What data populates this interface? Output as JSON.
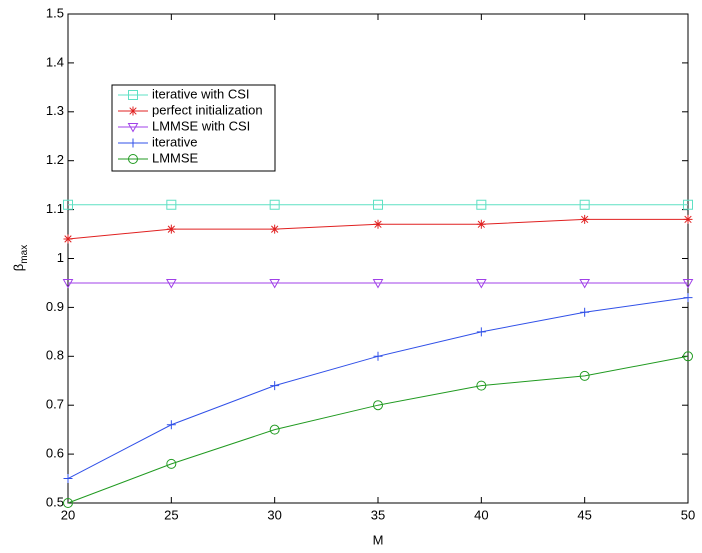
{
  "chart_data": {
    "type": "line",
    "xlabel": "M",
    "ylabel": {
      "text": "β",
      "subscript": "max"
    },
    "x": [
      20,
      25,
      30,
      35,
      40,
      45,
      50
    ],
    "series": [
      {
        "name": "iterative with CSI",
        "color": "#5fe0c4",
        "marker": "square",
        "values": [
          1.11,
          1.11,
          1.11,
          1.11,
          1.11,
          1.11,
          1.11
        ]
      },
      {
        "name": "perfect initialization",
        "color": "#e02020",
        "marker": "star",
        "values": [
          1.04,
          1.06,
          1.06,
          1.07,
          1.07,
          1.08,
          1.08
        ]
      },
      {
        "name": "LMMSE with CSI",
        "color": "#a040e8",
        "marker": "triangle-down",
        "values": [
          0.95,
          0.95,
          0.95,
          0.95,
          0.95,
          0.95,
          0.95
        ]
      },
      {
        "name": "iterative",
        "color": "#3050e8",
        "marker": "plus",
        "values": [
          0.55,
          0.66,
          0.74,
          0.8,
          0.85,
          0.89,
          0.92
        ]
      },
      {
        "name": "LMMSE",
        "color": "#209a20",
        "marker": "circle",
        "values": [
          0.5,
          0.58,
          0.65,
          0.7,
          0.74,
          0.76,
          0.8
        ]
      }
    ],
    "xlim": [
      20,
      50
    ],
    "xticks": [
      20,
      25,
      30,
      35,
      40,
      45,
      50
    ],
    "ylim": [
      0.5,
      1.5
    ],
    "yticks": [
      0.5,
      0.6,
      0.7,
      0.8,
      0.9,
      1,
      1.1,
      1.2,
      1.3,
      1.4,
      1.5
    ],
    "grid": false,
    "legend": "upper left"
  }
}
